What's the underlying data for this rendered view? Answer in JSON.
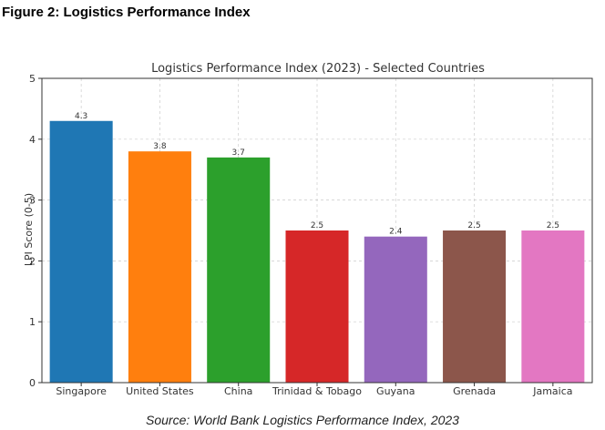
{
  "figure_caption": "Figure 2: Logistics Performance Index",
  "source_note": "Source: World Bank Logistics Performance Index, 2023",
  "chart_data": {
    "type": "bar",
    "title": "Logistics Performance Index (2023) - Selected Countries",
    "xlabel": "",
    "ylabel": "LPI Score (0-5)",
    "ylim": [
      0,
      5
    ],
    "yticks": [
      0,
      1,
      2,
      3,
      4,
      5
    ],
    "grid": true,
    "categories": [
      "Singapore",
      "United States",
      "China",
      "Trinidad & Tobago",
      "Guyana",
      "Grenada",
      "Jamaica"
    ],
    "values": [
      4.3,
      3.8,
      3.7,
      2.5,
      2.4,
      2.5,
      2.5
    ],
    "value_labels": [
      "4.3",
      "3.8",
      "3.7",
      "2.5",
      "2.4",
      "2.5",
      "2.5"
    ],
    "colors": [
      "#1f77b4",
      "#ff7f0e",
      "#2ca02c",
      "#d62728",
      "#9467bd",
      "#8c564b",
      "#e377c2"
    ]
  }
}
